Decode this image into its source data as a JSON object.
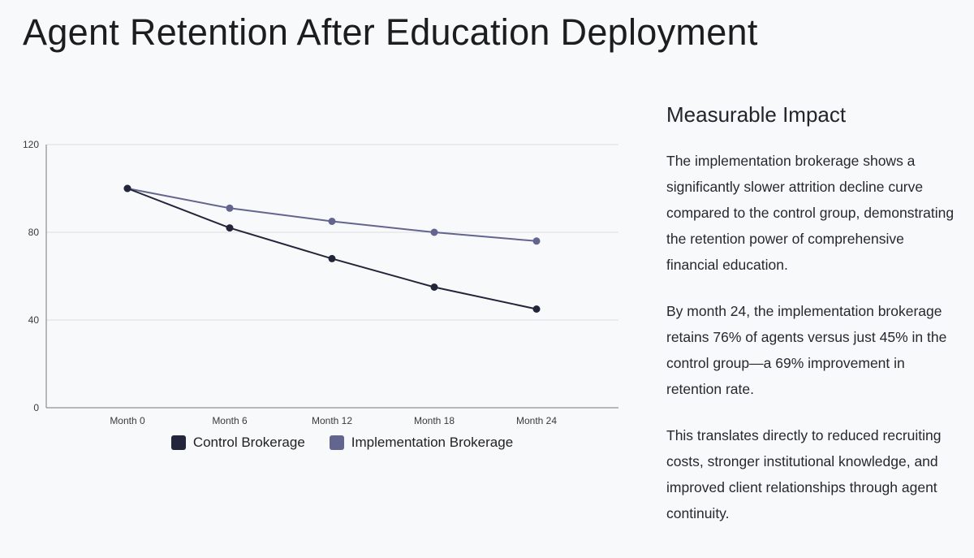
{
  "page": {
    "title": "Agent Retention After Education Deployment",
    "background": "#f8f9fa"
  },
  "chart_data": {
    "type": "line",
    "title": "",
    "xlabel": "",
    "ylabel": "",
    "categories": [
      "Month 0",
      "Month 6",
      "Month 12",
      "Month 18",
      "Month 24"
    ],
    "series": [
      {
        "name": "Control Brokerage",
        "color": "#23263b",
        "values": [
          100,
          82,
          68,
          55,
          45
        ]
      },
      {
        "name": "Implementation Brokerage",
        "color": "#63658e",
        "values": [
          100,
          91,
          85,
          80,
          76
        ]
      }
    ],
    "ylim": [
      0,
      120
    ],
    "yticks": [
      0,
      40,
      80,
      120
    ],
    "grid": true,
    "grid_color": "#dddddd",
    "axis_color": "#777777",
    "legend_position": "bottom"
  },
  "sidebar": {
    "heading": "Measurable Impact",
    "paragraphs": [
      "The implementation brokerage shows a significantly slower attrition decline curve compared to the control group, demonstrating the retention power of comprehensive financial education.",
      "By month 24, the implementation brokerage retains 76% of agents versus just 45% in the control group—a 69% improvement in retention rate.",
      "This translates directly to reduced recruiting costs, stronger institutional knowledge, and improved client relationships through agent continuity."
    ]
  }
}
